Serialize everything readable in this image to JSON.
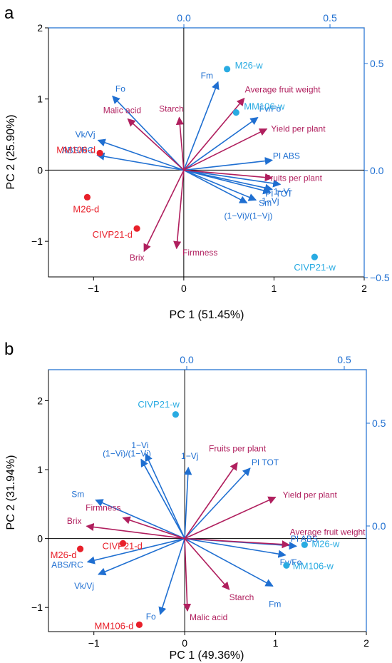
{
  "colors": {
    "score_dry": "#e8202a",
    "score_wet": "#29abe2",
    "vec_blue": "#1f6fd1",
    "vec_crimson": "#b01f5e",
    "axis_right": "#1f6fd1",
    "frame": "#000000"
  },
  "chart_data": [
    {
      "type": "scatter",
      "panel_label": "a",
      "xlabel": "PC 1 (51.45%)",
      "ylabel": "PC 2 (25.90%)",
      "xlim": [
        -1.5,
        2.0
      ],
      "ylim": [
        -1.5,
        2.0
      ],
      "xticks": [
        -1,
        0,
        1,
        2
      ],
      "xtick_labels": [
        "−1",
        "0",
        "1",
        "2"
      ],
      "yticks": [
        -1,
        0,
        1,
        2
      ],
      "ytick_labels": [
        "−1",
        "0",
        "1",
        "2"
      ],
      "top_ticks": [
        0.0,
        0.5
      ],
      "top_tick_labels": [
        "0.0",
        "0.5"
      ],
      "right_ticks": [
        -0.5,
        0.0,
        0.5
      ],
      "right_tick_labels": [
        "−0.5",
        "0.0",
        "0.5"
      ],
      "scores": [
        {
          "label": "M26-w",
          "x": 0.48,
          "y": 1.42,
          "group": "wet"
        },
        {
          "label": "MM106-w",
          "x": 0.58,
          "y": 0.81,
          "group": "wet"
        },
        {
          "label": "CIVP21-w",
          "x": 1.45,
          "y": -1.22,
          "group": "wet"
        },
        {
          "label": "MM106-d",
          "x": -0.93,
          "y": 0.24,
          "group": "dry"
        },
        {
          "label": "M26-d",
          "x": -1.07,
          "y": -0.38,
          "group": "dry"
        },
        {
          "label": "CIVP21-d",
          "x": -0.52,
          "y": -0.82,
          "group": "dry"
        }
      ],
      "loadings": [
        {
          "label": "Fm",
          "x": 0.38,
          "y": 1.24,
          "color": "blue"
        },
        {
          "label": "Fo",
          "x": -0.79,
          "y": 1.04,
          "color": "blue"
        },
        {
          "label": "Vk/Vj",
          "x": -0.95,
          "y": 0.42,
          "color": "blue"
        },
        {
          "label": "ABS/RC",
          "x": -0.96,
          "y": 0.21,
          "color": "blue"
        },
        {
          "label": "Fv/Fo",
          "x": 0.82,
          "y": 0.74,
          "color": "blue"
        },
        {
          "label": "PI ABS",
          "x": 0.98,
          "y": 0.14,
          "color": "blue"
        },
        {
          "label": "PI TOT",
          "x": 1.07,
          "y": -0.2,
          "color": "blue"
        },
        {
          "label": "1−Vi",
          "x": 0.98,
          "y": -0.27,
          "color": "blue"
        },
        {
          "label": "1−Vj",
          "x": 0.96,
          "y": -0.31,
          "color": "blue"
        },
        {
          "label": "Sm",
          "x": 0.8,
          "y": -0.42,
          "color": "blue"
        },
        {
          "label": "(1−Vi)/(1−Vj)",
          "x": 0.7,
          "y": -0.46,
          "color": "blue"
        },
        {
          "label": "Average fruit weight",
          "x": 0.67,
          "y": 1.01,
          "color": "crimson"
        },
        {
          "label": "Yield per plant",
          "x": 0.92,
          "y": 0.58,
          "color": "crimson"
        },
        {
          "label": "Fruits per plant",
          "x": 0.98,
          "y": -0.11,
          "color": "crimson"
        },
        {
          "label": "Malic acid",
          "x": -0.62,
          "y": 0.72,
          "color": "crimson"
        },
        {
          "label": "Starch",
          "x": -0.05,
          "y": 0.74,
          "color": "crimson"
        },
        {
          "label": "Brix",
          "x": -0.44,
          "y": -1.14,
          "color": "crimson"
        },
        {
          "label": "Firmness",
          "x": -0.08,
          "y": -1.1,
          "color": "crimson"
        }
      ]
    },
    {
      "type": "scatter",
      "panel_label": "b",
      "xlabel": "PC 1 (49.36%)",
      "ylabel": "PC 2 (31.94%)",
      "xlim": [
        -1.5,
        2.0
      ],
      "ylim": [
        -1.35,
        2.45
      ],
      "xticks": [
        -1,
        0,
        1,
        2
      ],
      "xtick_labels": [
        "−1",
        "0",
        "1",
        "2"
      ],
      "yticks": [
        -1,
        0,
        1,
        2
      ],
      "ytick_labels": [
        "−1",
        "0",
        "1",
        "2"
      ],
      "top_ticks": [
        0.0,
        0.5
      ],
      "top_tick_labels": [
        "0.0",
        "0.5"
      ],
      "right_ticks": [
        0.0,
        0.5
      ],
      "right_tick_labels": [
        "0.0",
        "0.5"
      ],
      "scores": [
        {
          "label": "CIVP21-w",
          "x": -0.1,
          "y": 1.8,
          "group": "wet"
        },
        {
          "label": "M26-w",
          "x": 1.32,
          "y": -0.09,
          "group": "wet"
        },
        {
          "label": "MM106-w",
          "x": 1.12,
          "y": -0.39,
          "group": "wet"
        },
        {
          "label": "M26-d",
          "x": -1.15,
          "y": -0.15,
          "group": "dry"
        },
        {
          "label": "CIVP21-d",
          "x": -0.68,
          "y": -0.07,
          "group": "dry"
        },
        {
          "label": "MM106-d",
          "x": -0.5,
          "y": -1.25,
          "group": "dry"
        }
      ],
      "loadings": [
        {
          "label": "1−Vi",
          "x": -0.43,
          "y": 1.23,
          "color": "blue"
        },
        {
          "label": "(1−Vi)/(1−Vj)",
          "x": -0.48,
          "y": 1.15,
          "color": "blue"
        },
        {
          "label": "1−Vj",
          "x": 0.04,
          "y": 1.03,
          "color": "blue"
        },
        {
          "label": "PI TOT",
          "x": 0.72,
          "y": 1.02,
          "color": "blue"
        },
        {
          "label": "Sm",
          "x": -0.98,
          "y": 0.56,
          "color": "blue"
        },
        {
          "label": "PI ABS",
          "x": 1.23,
          "y": -0.11,
          "color": "blue"
        },
        {
          "label": "Fv/Fo",
          "x": 1.11,
          "y": -0.24,
          "color": "blue"
        },
        {
          "label": "Fm",
          "x": 0.97,
          "y": -0.69,
          "color": "blue"
        },
        {
          "label": "ABS/RC",
          "x": -1.07,
          "y": -0.34,
          "color": "blue"
        },
        {
          "label": "Vk/Vj",
          "x": -0.95,
          "y": -0.52,
          "color": "blue"
        },
        {
          "label": "Fo",
          "x": -0.27,
          "y": -1.1,
          "color": "blue"
        },
        {
          "label": "Fruits per plant",
          "x": 0.58,
          "y": 1.1,
          "color": "crimson"
        },
        {
          "label": "Yield per plant",
          "x": 1.0,
          "y": 0.6,
          "color": "crimson"
        },
        {
          "label": "Average fruit weight",
          "x": 1.15,
          "y": -0.09,
          "color": "crimson"
        },
        {
          "label": "Firmness",
          "x": -0.68,
          "y": 0.3,
          "color": "crimson"
        },
        {
          "label": "Brix",
          "x": -1.08,
          "y": 0.18,
          "color": "crimson"
        },
        {
          "label": "Starch",
          "x": 0.49,
          "y": -0.74,
          "color": "crimson"
        },
        {
          "label": "Malic acid",
          "x": 0.03,
          "y": -1.05,
          "color": "crimson"
        }
      ]
    }
  ]
}
